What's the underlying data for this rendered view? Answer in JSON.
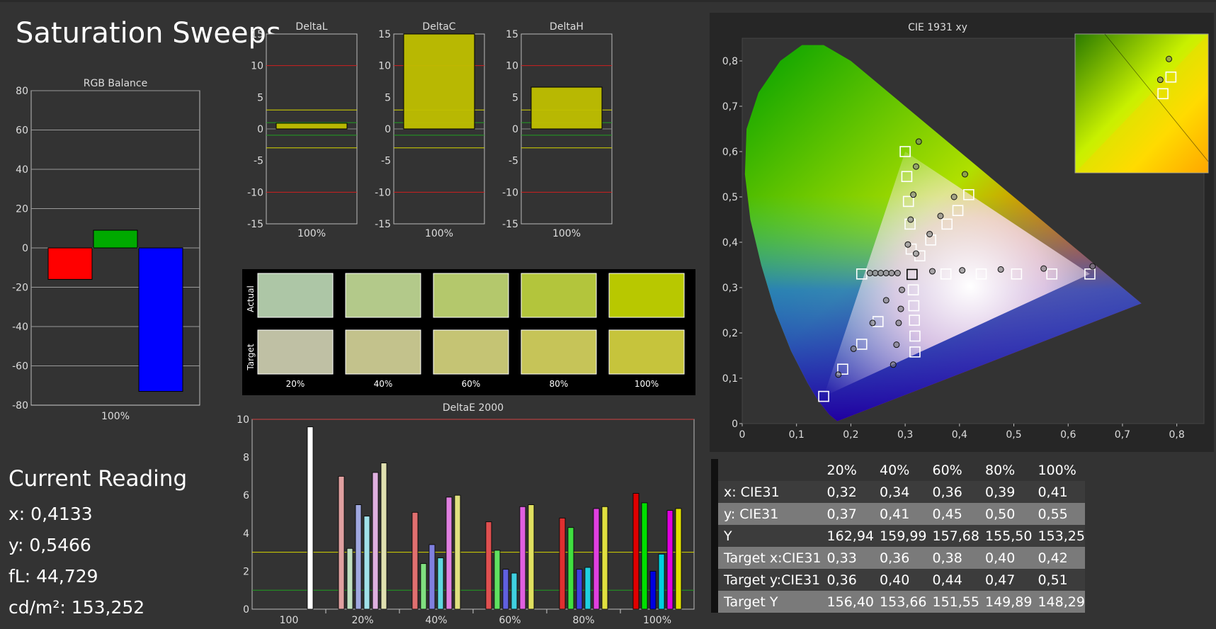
{
  "page_title": "Saturation Sweeps",
  "current_reading": {
    "title": "Current Reading",
    "lines": [
      "x: 0,4133",
      "y: 0,5466",
      "fL: 44,729",
      "cd/m²: 153,252"
    ]
  },
  "chart_data": [
    {
      "id": "rgb_balance",
      "type": "bar",
      "title": "RGB Balance",
      "categories": [
        "100%"
      ],
      "series": [
        {
          "color": "#ff0000",
          "values": [
            -16
          ]
        },
        {
          "color": "#00aa00",
          "values": [
            9
          ]
        },
        {
          "color": "#0000ff",
          "values": [
            -73
          ]
        }
      ],
      "ylim": [
        -80,
        80
      ],
      "yticks": [
        80,
        60,
        40,
        20,
        0,
        -20,
        -40,
        -60,
        -80
      ],
      "grid": true
    },
    {
      "id": "delta_l",
      "type": "bar",
      "title": "DeltaL",
      "categories": [
        "100%"
      ],
      "values": [
        0.9
      ],
      "ylim": [
        -15,
        15
      ],
      "yticks": [
        15,
        10,
        5,
        0,
        -5,
        -10,
        -15
      ]
    },
    {
      "id": "delta_c",
      "type": "bar",
      "title": "DeltaC",
      "categories": [
        "100%"
      ],
      "values": [
        15
      ],
      "ylim": [
        -15,
        15
      ],
      "yticks": [
        15,
        10,
        5,
        0,
        -5,
        -10,
        -15
      ]
    },
    {
      "id": "delta_h",
      "type": "bar",
      "title": "DeltaH",
      "categories": [
        "100%"
      ],
      "values": [
        6.6
      ],
      "ylim": [
        -15,
        15
      ],
      "yticks": [
        15,
        10,
        5,
        0,
        -5,
        -10,
        -15
      ]
    },
    {
      "id": "swatches",
      "type": "table",
      "row_labels": [
        "Actual",
        "Target"
      ],
      "columns": [
        "20%",
        "40%",
        "60%",
        "80%",
        "100%"
      ],
      "actual_colors": [
        "#adc6a6",
        "#b3c98a",
        "#b4c86c",
        "#b3c53c",
        "#b8c800"
      ],
      "target_colors": [
        "#bfc0a4",
        "#c3c28c",
        "#c5c474",
        "#c6c458",
        "#c6c43c"
      ]
    },
    {
      "id": "delta_e_2000",
      "type": "bar",
      "title": "DeltaE 2000",
      "categories": [
        "100",
        "20%",
        "40%",
        "60%",
        "80%",
        "100%"
      ],
      "groups": [
        [
          9.6
        ],
        [
          7.0,
          3.2,
          5.5,
          4.9,
          7.2,
          7.7
        ],
        [
          5.1,
          2.4,
          3.4,
          2.7,
          5.9,
          6.0
        ],
        [
          4.6,
          3.1,
          2.1,
          1.9,
          5.4,
          5.5
        ],
        [
          4.8,
          4.3,
          2.1,
          2.2,
          5.3,
          5.4
        ],
        [
          6.1,
          5.6,
          2.0,
          2.9,
          5.2,
          5.3
        ]
      ],
      "group_color_sets": [
        [
          "#ffffff"
        ],
        [
          "#e0a0a0",
          "#c0e0c0",
          "#a0a8e0",
          "#a0e0e8",
          "#e0b0e0",
          "#e0e0b0"
        ],
        [
          "#e07070",
          "#80e080",
          "#8080e0",
          "#60d8e0",
          "#e080e0",
          "#e0e080"
        ],
        [
          "#e05050",
          "#60e060",
          "#6060e0",
          "#40d0e0",
          "#e060e0",
          "#e0e060"
        ],
        [
          "#e03030",
          "#40e040",
          "#4040e0",
          "#20d0e0",
          "#e040e0",
          "#e0e040"
        ],
        [
          "#e00000",
          "#00e000",
          "#0000e0",
          "#00d0e0",
          "#e000e0",
          "#e0e000"
        ]
      ],
      "ylim": [
        0,
        10
      ],
      "yticks": [
        10,
        8,
        6,
        4,
        2,
        0
      ]
    },
    {
      "id": "cie_1931",
      "type": "scatter",
      "title": "CIE 1931 xy",
      "xlim": [
        0,
        0.85
      ],
      "ylim": [
        0,
        0.85
      ],
      "xticks": [
        "0",
        "0,1",
        "0,2",
        "0,3",
        "0,4",
        "0,5",
        "0,6",
        "0,7",
        "0,8"
      ],
      "yticks": [
        "0",
        "0,1",
        "0,2",
        "0,3",
        "0,4",
        "0,5",
        "0,6",
        "0,7",
        "0,8"
      ],
      "gamut": [
        [
          0.64,
          0.33
        ],
        [
          0.3,
          0.6
        ],
        [
          0.15,
          0.06
        ]
      ],
      "white_point": [
        0.3127,
        0.329
      ],
      "targets": [
        [
          0.22,
          0.33
        ],
        [
          0.3127,
          0.329
        ],
        [
          0.375,
          0.33
        ],
        [
          0.44,
          0.33
        ],
        [
          0.505,
          0.33
        ],
        [
          0.57,
          0.33
        ],
        [
          0.64,
          0.33
        ],
        [
          0.3,
          0.6
        ],
        [
          0.303,
          0.545
        ],
        [
          0.306,
          0.49
        ],
        [
          0.309,
          0.44
        ],
        [
          0.311,
          0.385
        ],
        [
          0.315,
          0.295
        ],
        [
          0.316,
          0.26
        ],
        [
          0.317,
          0.228
        ],
        [
          0.318,
          0.193
        ],
        [
          0.318,
          0.158
        ],
        [
          0.25,
          0.225
        ],
        [
          0.22,
          0.175
        ],
        [
          0.185,
          0.12
        ],
        [
          0.15,
          0.06
        ],
        [
          0.327,
          0.37
        ],
        [
          0.347,
          0.405
        ],
        [
          0.377,
          0.44
        ],
        [
          0.397,
          0.47
        ],
        [
          0.417,
          0.505
        ]
      ],
      "measured": [
        [
          0.235,
          0.332
        ],
        [
          0.245,
          0.332
        ],
        [
          0.255,
          0.332
        ],
        [
          0.265,
          0.332
        ],
        [
          0.275,
          0.332
        ],
        [
          0.286,
          0.332
        ],
        [
          0.35,
          0.336
        ],
        [
          0.405,
          0.338
        ],
        [
          0.476,
          0.34
        ],
        [
          0.555,
          0.342
        ],
        [
          0.645,
          0.347
        ],
        [
          0.325,
          0.622
        ],
        [
          0.32,
          0.567
        ],
        [
          0.315,
          0.505
        ],
        [
          0.31,
          0.45
        ],
        [
          0.305,
          0.395
        ],
        [
          0.294,
          0.295
        ],
        [
          0.292,
          0.253
        ],
        [
          0.288,
          0.222
        ],
        [
          0.284,
          0.174
        ],
        [
          0.278,
          0.13
        ],
        [
          0.265,
          0.272
        ],
        [
          0.24,
          0.222
        ],
        [
          0.205,
          0.165
        ],
        [
          0.177,
          0.108
        ],
        [
          0.32,
          0.375
        ],
        [
          0.345,
          0.418
        ],
        [
          0.365,
          0.458
        ],
        [
          0.39,
          0.5
        ],
        [
          0.41,
          0.55
        ]
      ],
      "inset_targets": [
        [
          0.72,
          0.69
        ],
        [
          0.66,
          0.57
        ]
      ],
      "inset_measured": [
        [
          0.705,
          0.82
        ],
        [
          0.64,
          0.67
        ]
      ]
    }
  ],
  "table": {
    "columns": [
      "20%",
      "40%",
      "60%",
      "80%",
      "100%"
    ],
    "rows": [
      {
        "label": "x: CIE31",
        "values": [
          "0,32",
          "0,34",
          "0,36",
          "0,39",
          "0,41"
        ]
      },
      {
        "label": "y: CIE31",
        "values": [
          "0,37",
          "0,41",
          "0,45",
          "0,50",
          "0,55"
        ]
      },
      {
        "label": "Y",
        "values": [
          "162,94",
          "159,99",
          "157,68",
          "155,50",
          "153,25"
        ]
      },
      {
        "label": "Target x:CIE31",
        "values": [
          "0,33",
          "0,36",
          "0,38",
          "0,40",
          "0,42"
        ]
      },
      {
        "label": "Target y:CIE31",
        "values": [
          "0,36",
          "0,40",
          "0,44",
          "0,47",
          "0,51"
        ]
      },
      {
        "label": "Target Y",
        "values": [
          "156,40",
          "153,66",
          "151,55",
          "149,89",
          "148,29"
        ]
      }
    ]
  }
}
